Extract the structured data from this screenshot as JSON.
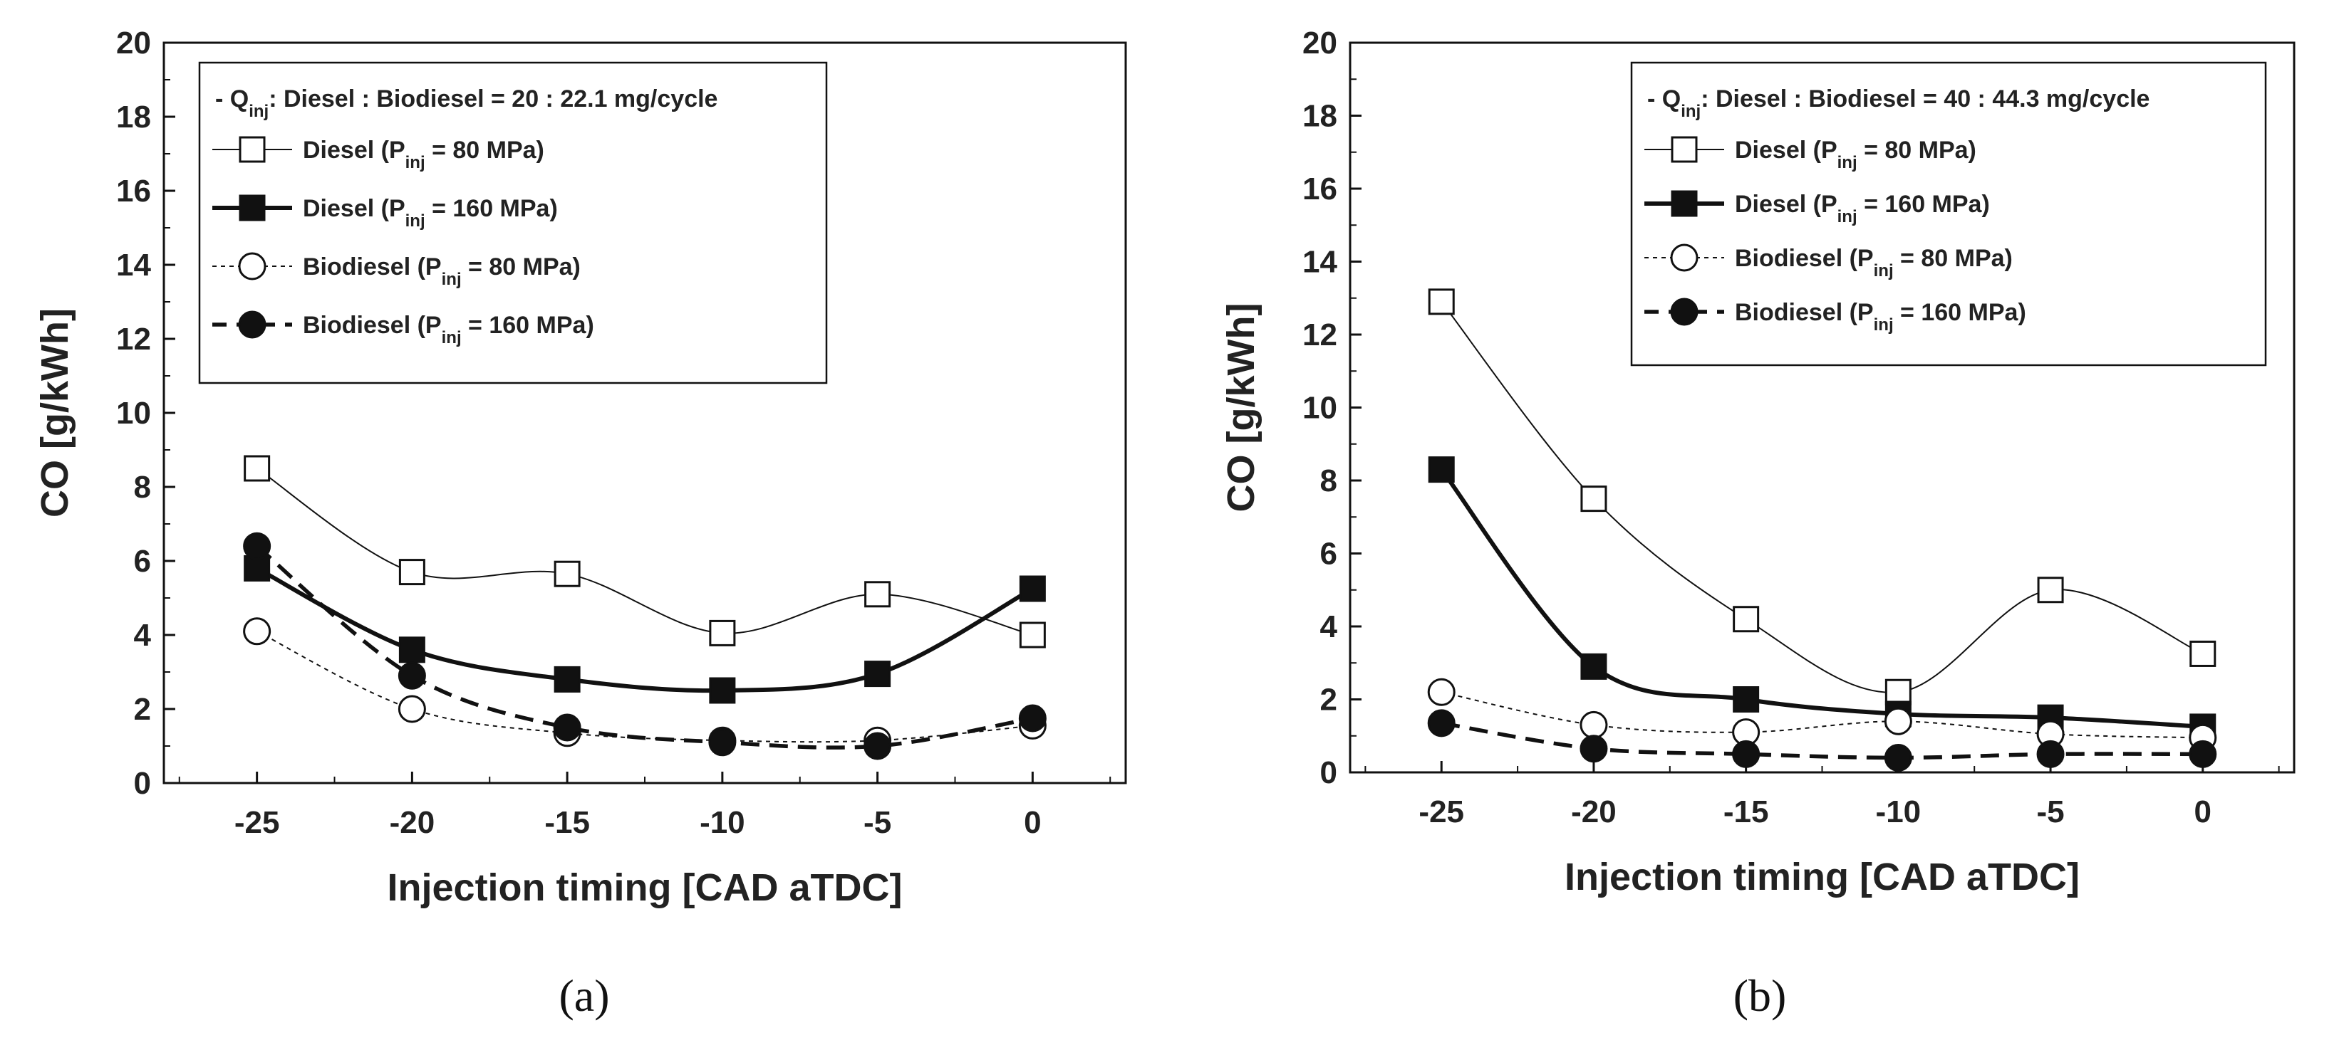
{
  "chart_data": [
    {
      "type": "line",
      "caption": "(a)",
      "xlabel": "Injection timing [CAD aTDC]",
      "ylabel": "CO [g/kWh]",
      "xlim": [
        -28,
        3
      ],
      "ylim": [
        0,
        20
      ],
      "xticks": [
        -25,
        -20,
        -15,
        -10,
        -5,
        0
      ],
      "yticks": [
        0,
        2,
        4,
        6,
        8,
        10,
        12,
        14,
        16,
        18,
        20
      ],
      "legend_placement": "top-left",
      "legend_header": {
        "prefix": "- Q",
        "sub": "inj",
        "suffix": ": Diesel : Biodiesel = 20 : 22.1 mg/cycle"
      },
      "x": [
        -25,
        -20,
        -15,
        -10,
        -5,
        0
      ],
      "series": [
        {
          "name": "Diesel (P_inj = 80 MPa)",
          "label_pre": "Diesel (P",
          "label_sub": "inj",
          "label_post": " = 80 MPa)",
          "marker": "open-square",
          "line": "thin-solid",
          "values": [
            8.5,
            5.7,
            5.65,
            4.05,
            5.1,
            4.0
          ]
        },
        {
          "name": "Diesel (P_inj = 160 MPa)",
          "label_pre": "Diesel (P",
          "label_sub": "inj",
          "label_post": " = 160 MPa)",
          "marker": "filled-square",
          "line": "thick-solid",
          "values": [
            5.8,
            3.6,
            2.8,
            2.5,
            2.95,
            5.25
          ]
        },
        {
          "name": "Biodiesel (P_inj = 80 MPa)",
          "label_pre": "Biodiesel (P",
          "label_sub": "inj",
          "label_post": " = 80 MPa)",
          "marker": "open-circle",
          "line": "thin-dotted",
          "values": [
            4.1,
            2.0,
            1.35,
            1.15,
            1.15,
            1.55
          ]
        },
        {
          "name": "Biodiesel (P_inj = 160 MPa)",
          "label_pre": "Biodiesel (P",
          "label_sub": "inj",
          "label_post": " = 160 MPa)",
          "marker": "filled-circle",
          "line": "thick-dashed",
          "values": [
            6.4,
            2.9,
            1.5,
            1.1,
            1.0,
            1.75
          ]
        }
      ]
    },
    {
      "type": "line",
      "caption": "(b)",
      "xlabel": "Injection timing [CAD aTDC]",
      "ylabel": "CO [g/kWh]",
      "xlim": [
        -28,
        3
      ],
      "ylim": [
        0,
        20
      ],
      "xticks": [
        -25,
        -20,
        -15,
        -10,
        -5,
        0
      ],
      "yticks": [
        0,
        2,
        4,
        6,
        8,
        10,
        12,
        14,
        16,
        18,
        20
      ],
      "legend_placement": "top-right",
      "legend_header": {
        "prefix": "- Q",
        "sub": "inj",
        "suffix": ": Diesel : Biodiesel = 40 : 44.3 mg/cycle"
      },
      "x": [
        -25,
        -20,
        -15,
        -10,
        -5,
        0
      ],
      "series": [
        {
          "name": "Diesel (P_inj = 80 MPa)",
          "label_pre": "Diesel (P",
          "label_sub": "inj",
          "label_post": " = 80 MPa)",
          "marker": "open-square",
          "line": "thin-solid",
          "values": [
            12.9,
            7.5,
            4.2,
            2.2,
            5.0,
            3.25
          ]
        },
        {
          "name": "Diesel (P_inj = 160 MPa)",
          "label_pre": "Diesel (P",
          "label_sub": "inj",
          "label_post": " = 160 MPa)",
          "marker": "filled-square",
          "line": "thick-solid",
          "values": [
            8.3,
            2.9,
            2.0,
            1.6,
            1.5,
            1.25
          ]
        },
        {
          "name": "Biodiesel (P_inj = 80 MPa)",
          "label_pre": "Biodiesel (P",
          "label_sub": "inj",
          "label_post": " = 80 MPa)",
          "marker": "open-circle",
          "line": "thin-dotted",
          "values": [
            2.2,
            1.3,
            1.1,
            1.4,
            1.05,
            0.95
          ]
        },
        {
          "name": "Biodiesel (P_inj = 160 MPa)",
          "label_pre": "Biodiesel (P",
          "label_sub": "inj",
          "label_post": " = 160 MPa)",
          "marker": "filled-circle",
          "line": "thick-dashed",
          "values": [
            1.35,
            0.65,
            0.5,
            0.4,
            0.5,
            0.5
          ]
        }
      ]
    }
  ]
}
